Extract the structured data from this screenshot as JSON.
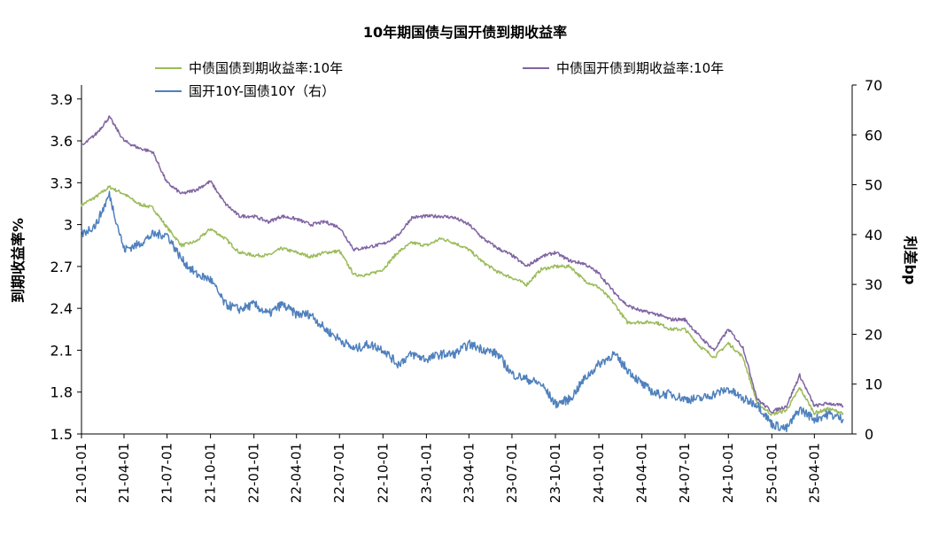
{
  "chart_data": {
    "type": "line",
    "title": "10年期国债与国开债到期收益率",
    "ylabel": "到期收益率%",
    "y2label": "利差bp",
    "ylim": [
      1.5,
      4.0
    ],
    "y2lim": [
      0,
      70
    ],
    "yticks": [
      "1.5",
      "1.8",
      "2.1",
      "2.4",
      "2.7",
      "3",
      "3.3",
      "3.6",
      "3.9"
    ],
    "y2ticks": [
      "0",
      "10",
      "20",
      "30",
      "40",
      "50",
      "60",
      "70"
    ],
    "xticks": [
      "21-01-01",
      "21-04-01",
      "21-07-01",
      "21-10-01",
      "22-01-01",
      "22-04-01",
      "22-07-01",
      "22-10-01",
      "23-01-01",
      "23-04-01",
      "23-07-01",
      "23-10-01",
      "24-01-01",
      "24-04-01",
      "24-07-01",
      "24-10-01",
      "25-01-01",
      "25-04-01"
    ],
    "grid": false,
    "legend_position": "top",
    "series": [
      {
        "name": "中债国债到期收益率:10年",
        "axis": "left",
        "color": "#9bbb59",
        "points": [
          [
            "21-01-01",
            3.14
          ],
          [
            "21-02-01",
            3.2
          ],
          [
            "21-03-01",
            3.27
          ],
          [
            "21-04-01",
            3.22
          ],
          [
            "21-05-01",
            3.15
          ],
          [
            "21-06-01",
            3.12
          ],
          [
            "21-07-01",
            2.98
          ],
          [
            "21-08-01",
            2.85
          ],
          [
            "21-09-01",
            2.88
          ],
          [
            "21-10-01",
            2.97
          ],
          [
            "21-11-01",
            2.9
          ],
          [
            "21-12-01",
            2.8
          ],
          [
            "22-01-01",
            2.78
          ],
          [
            "22-02-01",
            2.78
          ],
          [
            "22-03-01",
            2.83
          ],
          [
            "22-04-01",
            2.8
          ],
          [
            "22-05-01",
            2.77
          ],
          [
            "22-06-01",
            2.8
          ],
          [
            "22-07-01",
            2.81
          ],
          [
            "22-08-01",
            2.64
          ],
          [
            "22-09-01",
            2.64
          ],
          [
            "22-10-01",
            2.68
          ],
          [
            "22-11-01",
            2.8
          ],
          [
            "22-12-01",
            2.87
          ],
          [
            "23-01-01",
            2.85
          ],
          [
            "23-02-01",
            2.9
          ],
          [
            "23-03-01",
            2.87
          ],
          [
            "23-04-01",
            2.82
          ],
          [
            "23-05-01",
            2.73
          ],
          [
            "23-06-01",
            2.66
          ],
          [
            "23-07-01",
            2.62
          ],
          [
            "23-08-01",
            2.57
          ],
          [
            "23-09-01",
            2.68
          ],
          [
            "23-10-01",
            2.7
          ],
          [
            "23-11-01",
            2.7
          ],
          [
            "23-12-01",
            2.6
          ],
          [
            "24-01-01",
            2.55
          ],
          [
            "24-02-01",
            2.44
          ],
          [
            "24-03-01",
            2.3
          ],
          [
            "24-04-01",
            2.3
          ],
          [
            "24-05-01",
            2.3
          ],
          [
            "24-06-01",
            2.25
          ],
          [
            "24-07-01",
            2.25
          ],
          [
            "24-08-01",
            2.13
          ],
          [
            "24-09-01",
            2.05
          ],
          [
            "24-10-01",
            2.15
          ],
          [
            "24-11-01",
            2.05
          ],
          [
            "24-12-01",
            1.72
          ],
          [
            "25-01-01",
            1.64
          ],
          [
            "25-02-01",
            1.67
          ],
          [
            "25-03-01",
            1.83
          ],
          [
            "25-04-01",
            1.65
          ],
          [
            "25-05-01",
            1.68
          ],
          [
            "25-06-01",
            1.65
          ]
        ]
      },
      {
        "name": "中债国开债到期收益率:10年",
        "axis": "left",
        "color": "#8064a2",
        "points": [
          [
            "21-01-01",
            3.56
          ],
          [
            "21-02-01",
            3.65
          ],
          [
            "21-03-01",
            3.77
          ],
          [
            "21-04-01",
            3.6
          ],
          [
            "21-05-01",
            3.55
          ],
          [
            "21-06-01",
            3.52
          ],
          [
            "21-07-01",
            3.3
          ],
          [
            "21-08-01",
            3.22
          ],
          [
            "21-09-01",
            3.25
          ],
          [
            "21-10-01",
            3.31
          ],
          [
            "21-11-01",
            3.15
          ],
          [
            "21-12-01",
            3.06
          ],
          [
            "22-01-01",
            3.06
          ],
          [
            "22-02-01",
            3.02
          ],
          [
            "22-03-01",
            3.06
          ],
          [
            "22-04-01",
            3.04
          ],
          [
            "22-05-01",
            3.0
          ],
          [
            "22-06-01",
            3.02
          ],
          [
            "22-07-01",
            2.98
          ],
          [
            "22-08-01",
            2.82
          ],
          [
            "22-09-01",
            2.84
          ],
          [
            "22-10-01",
            2.86
          ],
          [
            "22-11-01",
            2.92
          ],
          [
            "22-12-01",
            3.05
          ],
          [
            "23-01-01",
            3.06
          ],
          [
            "23-02-01",
            3.06
          ],
          [
            "23-03-01",
            3.05
          ],
          [
            "23-04-01",
            3.0
          ],
          [
            "23-05-01",
            2.9
          ],
          [
            "23-06-01",
            2.83
          ],
          [
            "23-07-01",
            2.78
          ],
          [
            "23-08-01",
            2.7
          ],
          [
            "23-09-01",
            2.77
          ],
          [
            "23-10-01",
            2.8
          ],
          [
            "23-11-01",
            2.74
          ],
          [
            "23-12-01",
            2.72
          ],
          [
            "24-01-01",
            2.65
          ],
          [
            "24-02-01",
            2.52
          ],
          [
            "24-03-01",
            2.42
          ],
          [
            "24-04-01",
            2.38
          ],
          [
            "24-05-01",
            2.36
          ],
          [
            "24-06-01",
            2.32
          ],
          [
            "24-07-01",
            2.32
          ],
          [
            "24-08-01",
            2.2
          ],
          [
            "24-09-01",
            2.1
          ],
          [
            "24-10-01",
            2.25
          ],
          [
            "24-11-01",
            2.12
          ],
          [
            "24-12-01",
            1.75
          ],
          [
            "25-01-01",
            1.66
          ],
          [
            "25-02-01",
            1.7
          ],
          [
            "25-03-01",
            1.92
          ],
          [
            "25-04-01",
            1.7
          ],
          [
            "25-05-01",
            1.72
          ],
          [
            "25-06-01",
            1.7
          ]
        ]
      },
      {
        "name": "国开10Y-国债10Y（右）",
        "axis": "right",
        "color": "#4f81bd",
        "points": [
          [
            "21-01-01",
            40
          ],
          [
            "21-02-01",
            42
          ],
          [
            "21-03-01",
            48
          ],
          [
            "21-04-01",
            37
          ],
          [
            "21-05-01",
            38
          ],
          [
            "21-06-01",
            40
          ],
          [
            "21-07-01",
            40
          ],
          [
            "21-08-01",
            35
          ],
          [
            "21-09-01",
            32
          ],
          [
            "21-10-01",
            31
          ],
          [
            "21-11-01",
            26
          ],
          [
            "21-12-01",
            25
          ],
          [
            "22-01-01",
            26
          ],
          [
            "22-02-01",
            24
          ],
          [
            "22-03-01",
            26
          ],
          [
            "22-04-01",
            24
          ],
          [
            "22-05-01",
            24
          ],
          [
            "22-06-01",
            21
          ],
          [
            "22-07-01",
            19
          ],
          [
            "22-08-01",
            17
          ],
          [
            "22-09-01",
            18
          ],
          [
            "22-10-01",
            17
          ],
          [
            "22-11-01",
            14
          ],
          [
            "22-12-01",
            16
          ],
          [
            "23-01-01",
            15
          ],
          [
            "23-02-01",
            16
          ],
          [
            "23-03-01",
            16
          ],
          [
            "23-04-01",
            18
          ],
          [
            "23-05-01",
            17
          ],
          [
            "23-06-01",
            16
          ],
          [
            "23-07-01",
            12
          ],
          [
            "23-08-01",
            11
          ],
          [
            "23-09-01",
            10
          ],
          [
            "23-10-01",
            6
          ],
          [
            "23-11-01",
            7
          ],
          [
            "23-12-01",
            11
          ],
          [
            "24-01-01",
            14
          ],
          [
            "24-02-01",
            16
          ],
          [
            "24-03-01",
            13
          ],
          [
            "24-04-01",
            10
          ],
          [
            "24-05-01",
            8
          ],
          [
            "24-06-01",
            8
          ],
          [
            "24-07-01",
            7
          ],
          [
            "24-08-01",
            7
          ],
          [
            "24-09-01",
            8
          ],
          [
            "24-10-01",
            9
          ],
          [
            "24-11-01",
            7
          ],
          [
            "24-12-01",
            6
          ],
          [
            "25-01-01",
            2
          ],
          [
            "25-02-01",
            1
          ],
          [
            "25-03-01",
            5
          ],
          [
            "25-04-01",
            3
          ],
          [
            "25-05-01",
            4
          ],
          [
            "25-06-01",
            3
          ]
        ]
      }
    ]
  }
}
